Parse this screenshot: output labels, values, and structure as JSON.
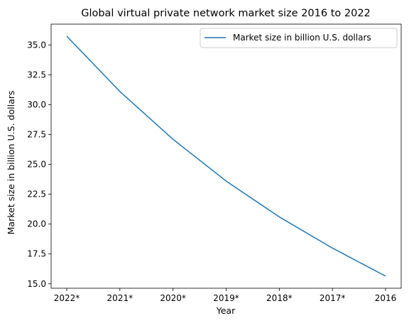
{
  "chart_data": {
    "type": "line",
    "title": "Global virtual private network market size 2016 to 2022",
    "xlabel": "Year",
    "ylabel": "Market size in billion U.S. dollars",
    "categories": [
      "2022*",
      "2021*",
      "2020*",
      "2019*",
      "2018*",
      "2017*",
      "2016"
    ],
    "series": [
      {
        "name": "Market size in billion U.S. dollars",
        "values": [
          35.73,
          31.1,
          27.1,
          23.6,
          20.6,
          17.99,
          15.64
        ],
        "color": "#1f77b4"
      }
    ],
    "ylim": [
      14.63,
      36.74
    ],
    "yticks": [
      15.0,
      17.5,
      20.0,
      22.5,
      25.0,
      27.5,
      30.0,
      32.5,
      35.0
    ],
    "ytick_labels": [
      "15.0",
      "17.5",
      "20.0",
      "22.5",
      "25.0",
      "27.5",
      "30.0",
      "32.5",
      "35.0"
    ],
    "legend_position": "upper right",
    "grid": false
  }
}
